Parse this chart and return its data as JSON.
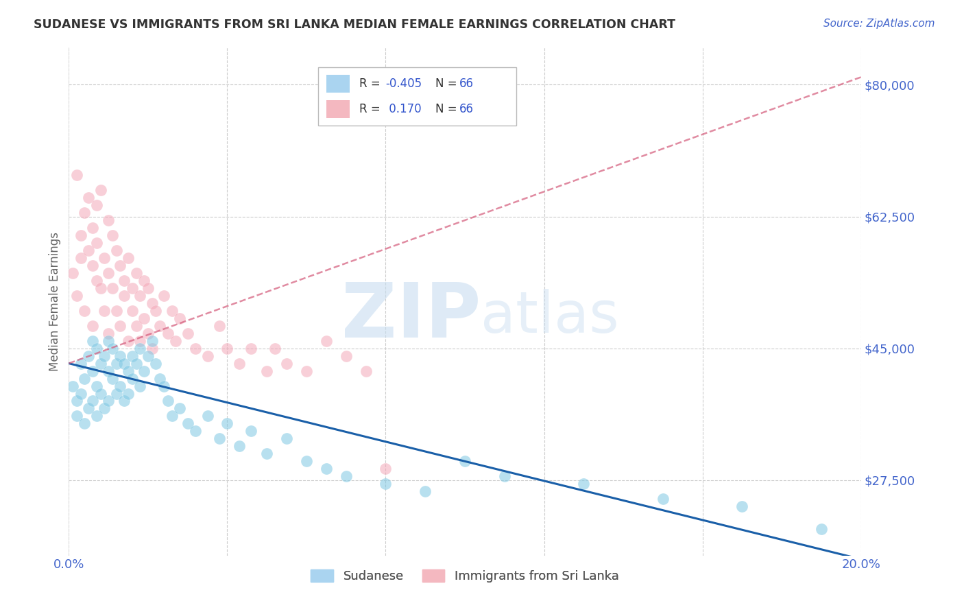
{
  "title": "SUDANESE VS IMMIGRANTS FROM SRI LANKA MEDIAN FEMALE EARNINGS CORRELATION CHART",
  "source": "Source: ZipAtlas.com",
  "ylabel": "Median Female Earnings",
  "watermark_zip": "ZIP",
  "watermark_atlas": "atlas",
  "xlim": [
    0.0,
    0.2
  ],
  "ylim": [
    17500,
    85000
  ],
  "yticks": [
    27500,
    45000,
    62500,
    80000
  ],
  "ytick_labels": [
    "$27,500",
    "$45,000",
    "$62,500",
    "$80,000"
  ],
  "xticks": [
    0.0,
    0.04,
    0.08,
    0.12,
    0.16,
    0.2
  ],
  "xtick_labels": [
    "0.0%",
    "",
    "",
    "",
    "",
    "20.0%"
  ],
  "blue_color": "#7ec8e3",
  "pink_color": "#f4a8b8",
  "blue_trend_color": "#1a5fa8",
  "pink_trend_color": "#d45a7a",
  "axis_label_color": "#4466cc",
  "title_color": "#333333",
  "source_color": "#4466cc",
  "grid_color": "#cccccc",
  "background_color": "#ffffff",
  "blue_trend_intercept": 43000,
  "blue_trend_slope": -130000,
  "pink_trend_intercept": 43000,
  "pink_trend_slope": 190000,
  "sudanese_x": [
    0.001,
    0.002,
    0.002,
    0.003,
    0.003,
    0.004,
    0.004,
    0.005,
    0.005,
    0.006,
    0.006,
    0.006,
    0.007,
    0.007,
    0.007,
    0.008,
    0.008,
    0.009,
    0.009,
    0.01,
    0.01,
    0.01,
    0.011,
    0.011,
    0.012,
    0.012,
    0.013,
    0.013,
    0.014,
    0.014,
    0.015,
    0.015,
    0.016,
    0.016,
    0.017,
    0.018,
    0.018,
    0.019,
    0.02,
    0.021,
    0.022,
    0.023,
    0.024,
    0.025,
    0.026,
    0.028,
    0.03,
    0.032,
    0.035,
    0.038,
    0.04,
    0.043,
    0.046,
    0.05,
    0.055,
    0.06,
    0.065,
    0.07,
    0.08,
    0.09,
    0.1,
    0.11,
    0.13,
    0.15,
    0.17,
    0.19
  ],
  "sudanese_y": [
    40000,
    38000,
    36000,
    43000,
    39000,
    41000,
    35000,
    44000,
    37000,
    42000,
    46000,
    38000,
    45000,
    40000,
    36000,
    43000,
    39000,
    44000,
    37000,
    42000,
    46000,
    38000,
    45000,
    41000,
    43000,
    39000,
    44000,
    40000,
    43000,
    38000,
    42000,
    39000,
    44000,
    41000,
    43000,
    45000,
    40000,
    42000,
    44000,
    46000,
    43000,
    41000,
    40000,
    38000,
    36000,
    37000,
    35000,
    34000,
    36000,
    33000,
    35000,
    32000,
    34000,
    31000,
    33000,
    30000,
    29000,
    28000,
    27000,
    26000,
    30000,
    28000,
    27000,
    25000,
    24000,
    21000
  ],
  "srilanka_x": [
    0.001,
    0.002,
    0.002,
    0.003,
    0.003,
    0.004,
    0.004,
    0.005,
    0.005,
    0.006,
    0.006,
    0.006,
    0.007,
    0.007,
    0.007,
    0.008,
    0.008,
    0.009,
    0.009,
    0.01,
    0.01,
    0.01,
    0.011,
    0.011,
    0.012,
    0.012,
    0.013,
    0.013,
    0.014,
    0.014,
    0.015,
    0.015,
    0.016,
    0.016,
    0.017,
    0.017,
    0.018,
    0.018,
    0.019,
    0.019,
    0.02,
    0.02,
    0.021,
    0.021,
    0.022,
    0.023,
    0.024,
    0.025,
    0.026,
    0.027,
    0.028,
    0.03,
    0.032,
    0.035,
    0.038,
    0.04,
    0.043,
    0.046,
    0.05,
    0.052,
    0.055,
    0.06,
    0.065,
    0.07,
    0.075,
    0.08
  ],
  "srilanka_y": [
    55000,
    68000,
    52000,
    60000,
    57000,
    63000,
    50000,
    58000,
    65000,
    56000,
    61000,
    48000,
    64000,
    54000,
    59000,
    53000,
    66000,
    57000,
    50000,
    62000,
    55000,
    47000,
    60000,
    53000,
    58000,
    50000,
    56000,
    48000,
    54000,
    52000,
    57000,
    46000,
    53000,
    50000,
    55000,
    48000,
    52000,
    46000,
    54000,
    49000,
    53000,
    47000,
    51000,
    45000,
    50000,
    48000,
    52000,
    47000,
    50000,
    46000,
    49000,
    47000,
    45000,
    44000,
    48000,
    45000,
    43000,
    45000,
    42000,
    45000,
    43000,
    42000,
    46000,
    44000,
    42000,
    29000
  ]
}
